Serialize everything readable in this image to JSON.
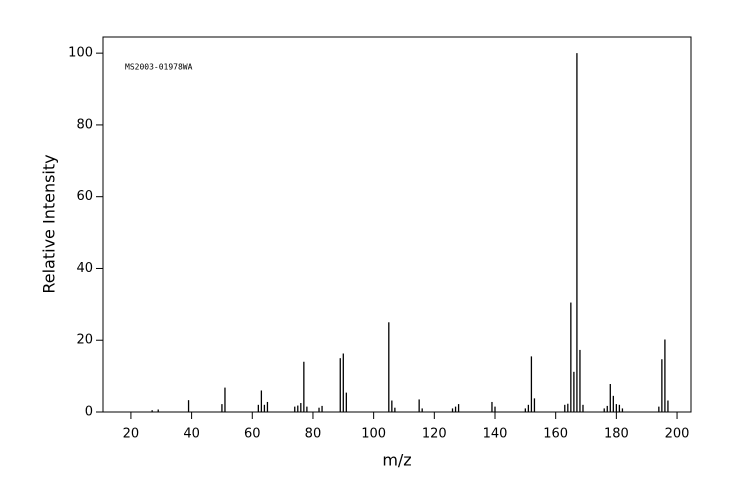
{
  "chart_data": {
    "type": "stick",
    "annotation": "MS2003-01978WA",
    "xlabel": "m/z",
    "ylabel": "Relative Intensity",
    "color": "#000000",
    "x": [
      27,
      29,
      39,
      50,
      51,
      62,
      63,
      64,
      65,
      74,
      75,
      76,
      77,
      78,
      82,
      83,
      89,
      90,
      91,
      105,
      106,
      107,
      115,
      116,
      126,
      127,
      128,
      139,
      140,
      150,
      151,
      152,
      153,
      163,
      164,
      165,
      166,
      167,
      168,
      169,
      176,
      177,
      178,
      179,
      180,
      181,
      182,
      194,
      195,
      196,
      197
    ],
    "values": [
      0.5,
      0.7,
      3.3,
      2.2,
      6.8,
      2,
      6,
      2,
      2.8,
      1.5,
      1.8,
      2.5,
      14,
      1.5,
      1.2,
      1.7,
      15,
      16.3,
      5.4,
      25,
      3.2,
      1.2,
      3.5,
      1,
      1,
      1.5,
      2.2,
      2.8,
      1.5,
      1,
      2,
      15.5,
      3.8,
      2,
      2.3,
      30.5,
      11.2,
      100,
      17.3,
      2,
      1,
      1.7,
      7.8,
      4.5,
      2.2,
      2,
      1,
      1.5,
      14.7,
      20.2,
      3.2
    ],
    "xlim": [
      10.8,
      204.6
    ],
    "xticks": [
      20,
      40,
      60,
      80,
      100,
      120,
      140,
      160,
      180,
      200
    ],
    "ylim": [
      0,
      104.5
    ],
    "yticks": [
      0,
      20,
      40,
      60,
      80,
      100
    ]
  }
}
